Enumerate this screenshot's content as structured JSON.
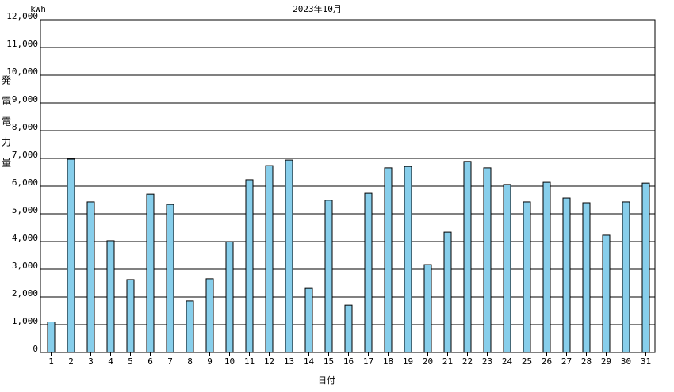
{
  "chart_data": {
    "type": "bar",
    "title": "2023年10月",
    "y_unit": "kWh",
    "y_label": "発電電力量",
    "x_label": "日付",
    "categories": [
      "1",
      "2",
      "3",
      "4",
      "5",
      "6",
      "7",
      "8",
      "9",
      "10",
      "11",
      "12",
      "13",
      "14",
      "15",
      "16",
      "17",
      "18",
      "19",
      "20",
      "21",
      "22",
      "23",
      "24",
      "25",
      "26",
      "27",
      "28",
      "29",
      "30",
      "31"
    ],
    "values": [
      1100,
      6970,
      5430,
      4030,
      2630,
      5710,
      5340,
      1860,
      2660,
      4000,
      6230,
      6740,
      6940,
      2310,
      5490,
      1710,
      5740,
      6660,
      6710,
      3170,
      4340,
      6890,
      6660,
      6060,
      5430,
      6140,
      5570,
      5400,
      4230,
      5430,
      6110
    ],
    "color": "#87ceeb",
    "ylim": [
      0,
      12000
    ],
    "yticks": [
      0,
      {
        "value": 1000,
        "label": "1,000"
      },
      {
        "value": 2000,
        "label": "2,000"
      },
      {
        "value": 3000,
        "label": "3,000"
      },
      {
        "value": 4000,
        "label": "4,000"
      },
      {
        "value": 5000,
        "label": "5,000"
      },
      {
        "value": 6000,
        "label": "6,000"
      },
      {
        "value": 7000,
        "label": "7,000"
      },
      {
        "value": 8000,
        "label": "8,000"
      },
      {
        "value": 9000,
        "label": "9,000"
      },
      {
        "value": 10000,
        "label": "10,000"
      },
      {
        "value": 11000,
        "label": "11,000"
      },
      {
        "value": 12000,
        "label": "12,000"
      }
    ],
    "grid": true
  }
}
